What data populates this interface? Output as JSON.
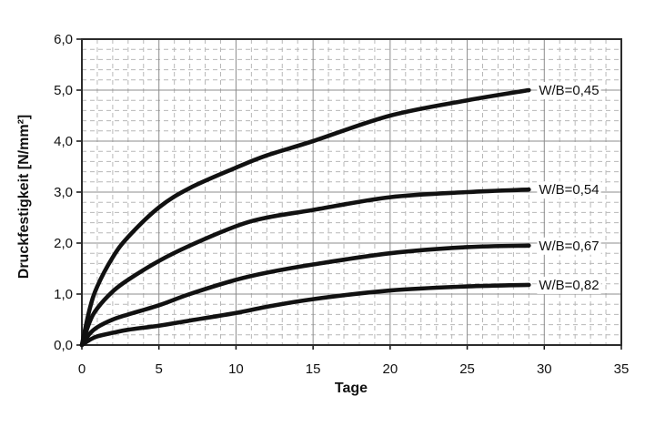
{
  "chart_data": {
    "type": "line",
    "title": "",
    "xlabel": "Tage",
    "ylabel": "Druckfestigkeit [N/mm²]",
    "xlim": [
      0,
      35
    ],
    "ylim": [
      0,
      6
    ],
    "x_major_ticks": [
      0,
      5,
      10,
      15,
      20,
      25,
      30,
      35
    ],
    "x_tick_labels": [
      "0",
      "5",
      "10",
      "15",
      "20",
      "25",
      "30",
      "35"
    ],
    "y_major_ticks": [
      0,
      1,
      2,
      3,
      4,
      5,
      6
    ],
    "y_tick_labels": [
      "0,0",
      "1,0",
      "2,0",
      "3,0",
      "4,0",
      "5,0",
      "6,0"
    ],
    "x_minor_step": 1,
    "y_minor_step": 0.2,
    "grid": "major-solid-minor-dashed",
    "legend_position": "labels-at-curve-ends",
    "series": [
      {
        "name": "W/B=0,45",
        "points": [
          [
            0,
            0
          ],
          [
            0.5,
            0.7
          ],
          [
            1,
            1.15
          ],
          [
            2,
            1.72
          ],
          [
            3,
            2.12
          ],
          [
            5,
            2.7
          ],
          [
            7,
            3.08
          ],
          [
            10,
            3.48
          ],
          [
            12,
            3.72
          ],
          [
            15,
            4.0
          ],
          [
            20,
            4.5
          ],
          [
            25,
            4.8
          ],
          [
            29,
            5.0
          ]
        ]
      },
      {
        "name": "W/B=0,54",
        "points": [
          [
            0,
            0
          ],
          [
            0.5,
            0.45
          ],
          [
            1,
            0.72
          ],
          [
            2,
            1.05
          ],
          [
            3,
            1.28
          ],
          [
            5,
            1.65
          ],
          [
            7,
            1.95
          ],
          [
            10,
            2.33
          ],
          [
            12,
            2.5
          ],
          [
            15,
            2.65
          ],
          [
            20,
            2.9
          ],
          [
            25,
            3.0
          ],
          [
            29,
            3.05
          ]
        ]
      },
      {
        "name": "W/B=0,67",
        "points": [
          [
            0,
            0
          ],
          [
            0.5,
            0.22
          ],
          [
            1,
            0.35
          ],
          [
            2,
            0.5
          ],
          [
            3,
            0.6
          ],
          [
            5,
            0.78
          ],
          [
            7,
            1.0
          ],
          [
            10,
            1.28
          ],
          [
            12,
            1.42
          ],
          [
            15,
            1.58
          ],
          [
            20,
            1.8
          ],
          [
            25,
            1.92
          ],
          [
            29,
            1.95
          ]
        ]
      },
      {
        "name": "W/B=0,82",
        "points": [
          [
            0,
            0
          ],
          [
            0.5,
            0.1
          ],
          [
            1,
            0.17
          ],
          [
            2,
            0.24
          ],
          [
            3,
            0.3
          ],
          [
            5,
            0.38
          ],
          [
            7,
            0.48
          ],
          [
            10,
            0.63
          ],
          [
            12,
            0.75
          ],
          [
            15,
            0.9
          ],
          [
            20,
            1.07
          ],
          [
            25,
            1.15
          ],
          [
            29,
            1.18
          ]
        ]
      }
    ]
  },
  "colors": {
    "curve": "#111111",
    "grid_major": "#8c8c8c",
    "grid_minor": "#b8b8b8",
    "axis_border": "#2b2b2b",
    "tick": "#111111",
    "background": "#ffffff",
    "text": "#111111"
  }
}
